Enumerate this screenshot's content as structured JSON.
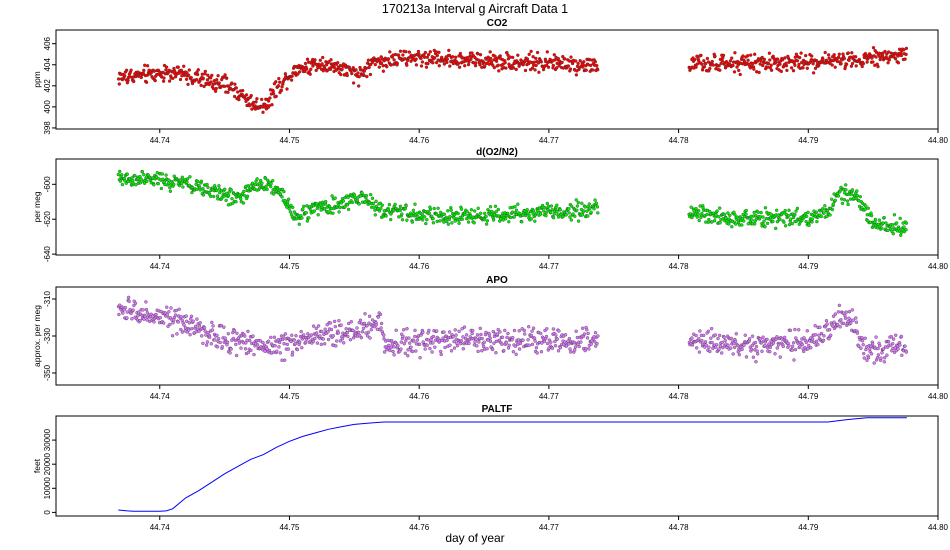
{
  "figure_title": "170213a   Interval g Aircraft Data 1",
  "xlabel": "day of year",
  "colors": {
    "co2": "#ff0000",
    "o2n2": "#00ee00",
    "apo": "#dd77ff",
    "paltf": "#0000ff",
    "outline": "#333333"
  },
  "chart_data": [
    {
      "type": "scatter",
      "title": "CO2",
      "ylabel": "ppm",
      "xlim": [
        44.732,
        44.8
      ],
      "ylim": [
        397.9,
        407.3
      ],
      "x_ticks": [
        "44.74",
        "44.75",
        "44.76",
        "44.77",
        "44.78",
        "44.79",
        "44.80"
      ],
      "x_tick_values": [
        44.74,
        44.75,
        44.76,
        44.77,
        44.78,
        44.79,
        44.8
      ],
      "y_ticks": [
        "398",
        "400",
        "402",
        "404",
        "406"
      ],
      "y_tick_values": [
        398,
        400,
        402,
        404,
        406
      ],
      "point_count": 1100,
      "segments": [
        [
          44.7368,
          44.7738
        ],
        [
          44.7808,
          44.7976
        ]
      ],
      "profile": [
        [
          44.7368,
          402.8
        ],
        [
          44.741,
          403.3
        ],
        [
          44.744,
          402.4
        ],
        [
          44.7455,
          401.9
        ],
        [
          44.7465,
          400.9
        ],
        [
          44.7475,
          400.1
        ],
        [
          44.7483,
          400.4
        ],
        [
          44.749,
          401.8
        ],
        [
          44.7505,
          403.6
        ],
        [
          44.7525,
          404.2
        ],
        [
          44.754,
          403.6
        ],
        [
          44.7553,
          402.9
        ],
        [
          44.7565,
          404.3
        ],
        [
          44.76,
          404.7
        ],
        [
          44.765,
          404.4
        ],
        [
          44.77,
          404.2
        ],
        [
          44.7738,
          403.9
        ],
        [
          44.7808,
          404.0
        ],
        [
          44.785,
          404.1
        ],
        [
          44.79,
          404.2
        ],
        [
          44.794,
          404.6
        ],
        [
          44.7976,
          405.0
        ]
      ],
      "noise": 0.55
    },
    {
      "type": "scatter",
      "title": "d(O2/N2)",
      "ylabel": "per meg",
      "xlim": [
        44.732,
        44.8
      ],
      "ylim": [
        -640.5,
        -585.5
      ],
      "x_ticks": [
        "44.74",
        "44.75",
        "44.76",
        "44.77",
        "44.78",
        "44.79",
        "44.80"
      ],
      "x_tick_values": [
        44.74,
        44.75,
        44.76,
        44.77,
        44.78,
        44.79,
        44.8
      ],
      "y_ticks": [
        "-640",
        "-620",
        "-600"
      ],
      "y_tick_values": [
        -640,
        -620,
        -600
      ],
      "point_count": 1100,
      "segments": [
        [
          44.7368,
          44.7738
        ],
        [
          44.7808,
          44.7976
        ]
      ],
      "profile": [
        [
          44.7368,
          -597
        ],
        [
          44.739,
          -597
        ],
        [
          44.742,
          -600
        ],
        [
          44.7445,
          -605
        ],
        [
          44.746,
          -608
        ],
        [
          44.7475,
          -601
        ],
        [
          44.7483,
          -599
        ],
        [
          44.7495,
          -606
        ],
        [
          44.7505,
          -619
        ],
        [
          44.752,
          -614
        ],
        [
          44.754,
          -612
        ],
        [
          44.7555,
          -607
        ],
        [
          44.757,
          -614
        ],
        [
          44.76,
          -618
        ],
        [
          44.765,
          -618
        ],
        [
          44.77,
          -616
        ],
        [
          44.7738,
          -614
        ],
        [
          44.7808,
          -616
        ],
        [
          44.785,
          -620
        ],
        [
          44.79,
          -619
        ],
        [
          44.7915,
          -615
        ],
        [
          44.7925,
          -605
        ],
        [
          44.7938,
          -608
        ],
        [
          44.795,
          -622
        ],
        [
          44.7976,
          -625
        ]
      ],
      "noise": 3.2
    },
    {
      "type": "scatter",
      "title": "APO",
      "ylabel": "approx. per meg",
      "xlim": [
        44.732,
        44.8
      ],
      "ylim": [
        -356.5,
        -303.5
      ],
      "x_ticks": [
        "44.74",
        "44.75",
        "44.76",
        "44.77",
        "44.78",
        "44.79",
        "44.80"
      ],
      "x_tick_values": [
        44.74,
        44.75,
        44.76,
        44.77,
        44.78,
        44.79,
        44.8
      ],
      "y_ticks": [
        "-350",
        "-330",
        "-310"
      ],
      "y_tick_values": [
        -350,
        -330,
        -310
      ],
      "point_count": 1100,
      "segments": [
        [
          44.7368,
          44.7738
        ],
        [
          44.7808,
          44.7976
        ]
      ],
      "profile": [
        [
          44.7368,
          -316
        ],
        [
          44.739,
          -318
        ],
        [
          44.742,
          -324
        ],
        [
          44.745,
          -332
        ],
        [
          44.7475,
          -334
        ],
        [
          44.749,
          -336
        ],
        [
          44.752,
          -330
        ],
        [
          44.755,
          -327
        ],
        [
          44.757,
          -322
        ],
        [
          44.7575,
          -335
        ],
        [
          44.76,
          -333
        ],
        [
          44.765,
          -332
        ],
        [
          44.77,
          -332
        ],
        [
          44.7738,
          -333
        ],
        [
          44.7808,
          -332
        ],
        [
          44.785,
          -336
        ],
        [
          44.79,
          -333
        ],
        [
          44.7915,
          -328
        ],
        [
          44.7925,
          -320
        ],
        [
          44.7935,
          -324
        ],
        [
          44.7945,
          -338
        ],
        [
          44.7976,
          -335
        ]
      ],
      "noise": 4.5
    },
    {
      "type": "line",
      "title": "PALTF",
      "ylabel": "feet",
      "xlim": [
        44.732,
        44.8
      ],
      "ylim": [
        -1500,
        40000
      ],
      "x_ticks": [
        "44.74",
        "44.75",
        "44.76",
        "44.77",
        "44.78",
        "44.79",
        "44.80"
      ],
      "x_tick_values": [
        44.74,
        44.75,
        44.76,
        44.77,
        44.78,
        44.79,
        44.8
      ],
      "y_ticks": [
        "0",
        "10000",
        "20000",
        "30000"
      ],
      "y_tick_values": [
        0,
        10000,
        20000,
        30000
      ],
      "x": [
        44.7368,
        44.7375,
        44.738,
        44.739,
        44.74,
        44.7405,
        44.741,
        44.742,
        44.743,
        44.744,
        44.745,
        44.746,
        44.747,
        44.748,
        44.749,
        44.75,
        44.751,
        44.752,
        44.753,
        44.754,
        44.755,
        44.756,
        44.7573,
        44.765,
        44.77,
        44.78,
        44.7895,
        44.7915,
        44.793,
        44.7945,
        44.7976
      ],
      "y": [
        1000,
        600,
        500,
        500,
        500,
        600,
        1500,
        6000,
        9000,
        12500,
        16000,
        19000,
        22000,
        24000,
        27000,
        29500,
        31500,
        33000,
        34500,
        35500,
        36500,
        37000,
        37500,
        37500,
        37500,
        37500,
        37500,
        37500,
        38500,
        39300,
        39300
      ]
    }
  ]
}
